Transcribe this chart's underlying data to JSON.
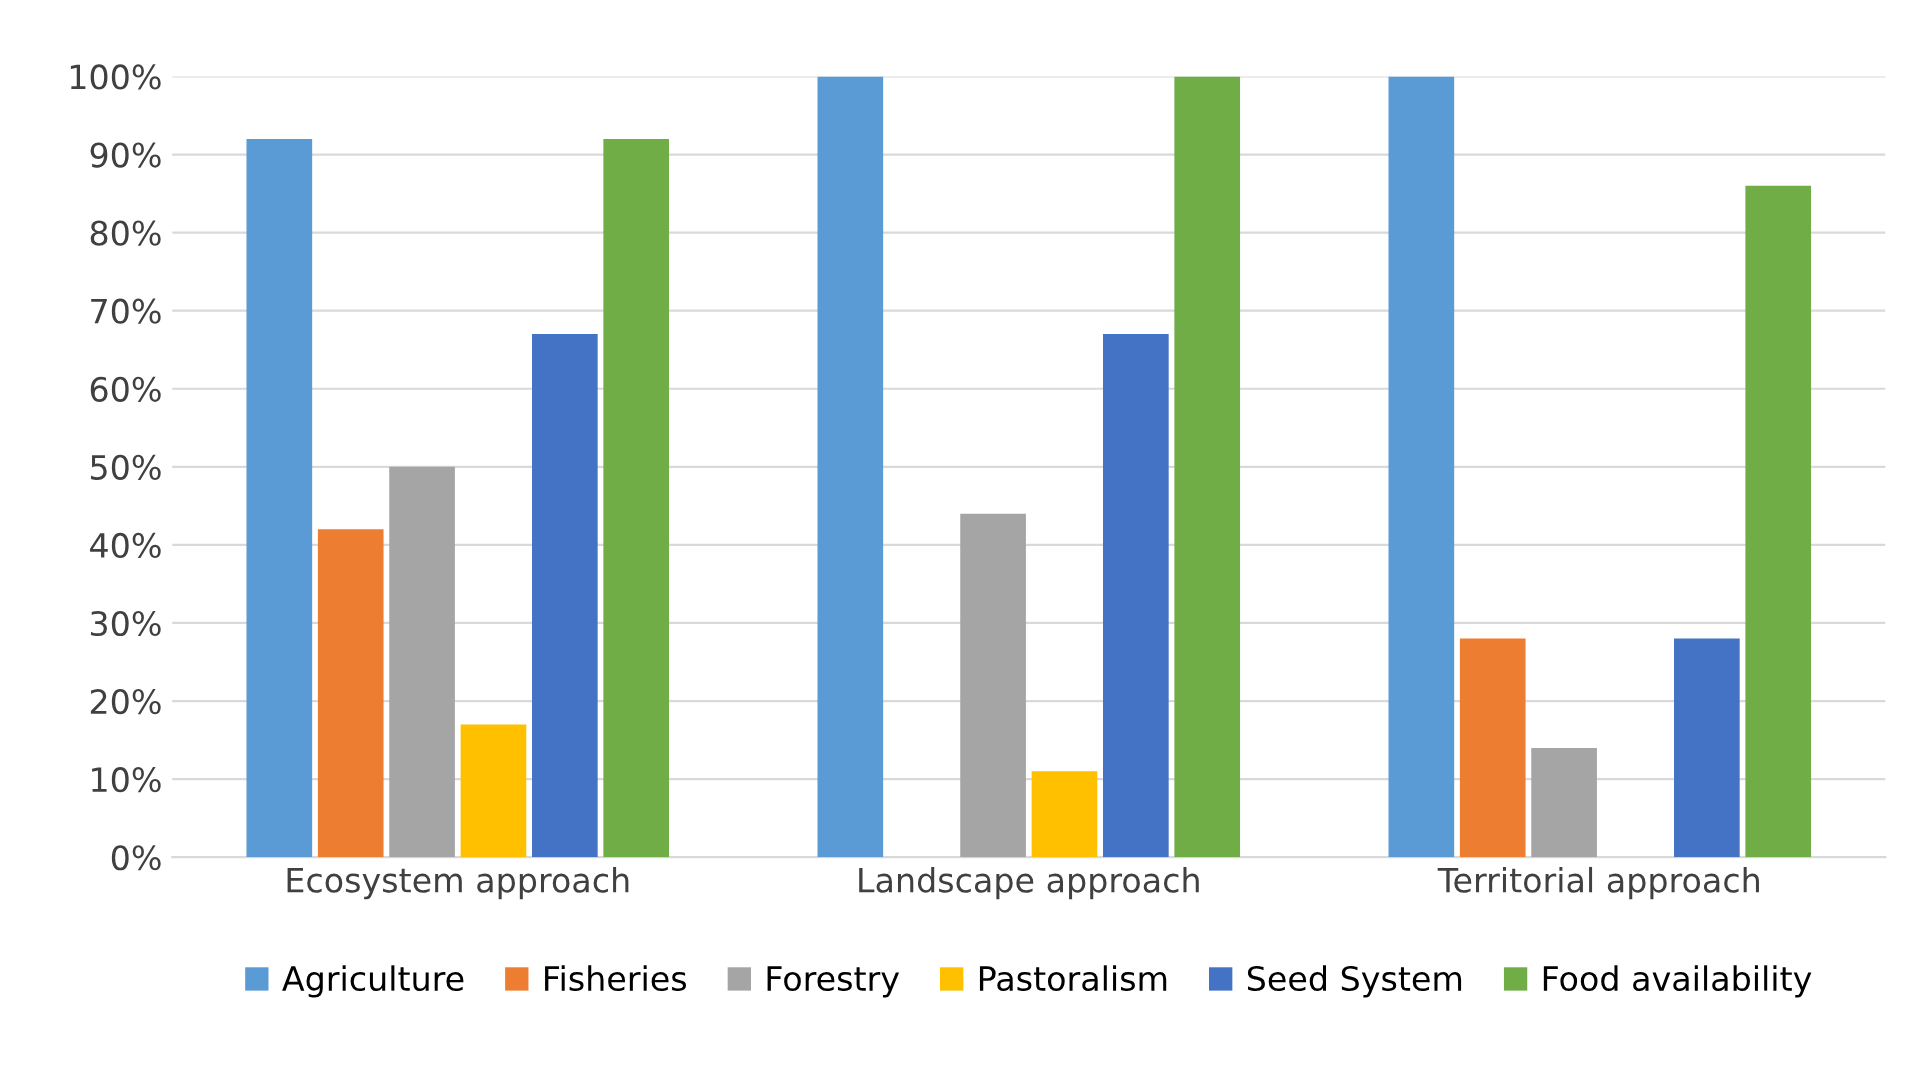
{
  "chart_data": {
    "type": "bar",
    "categories": [
      "Ecosystem approach",
      "Landscape approach",
      "Territorial approach"
    ],
    "series": [
      {
        "name": "Agriculture",
        "color": "#5b9bd5",
        "values": [
          92,
          100,
          100
        ]
      },
      {
        "name": "Fisheries",
        "color": "#ed7d31",
        "values": [
          42,
          0,
          28
        ]
      },
      {
        "name": "Forestry",
        "color": "#a5a5a5",
        "values": [
          50,
          44,
          14
        ]
      },
      {
        "name": "Pastoralism",
        "color": "#ffc000",
        "values": [
          17,
          11,
          0
        ]
      },
      {
        "name": "Seed System",
        "color": "#4472c4",
        "values": [
          67,
          67,
          28
        ]
      },
      {
        "name": "Food availability",
        "color": "#70ad47",
        "values": [
          92,
          100,
          86
        ]
      }
    ],
    "ylim": [
      0,
      100
    ],
    "yticks": [
      {
        "value": 0,
        "label": "0%"
      },
      {
        "value": 10,
        "label": "10%"
      },
      {
        "value": 20,
        "label": "20%"
      },
      {
        "value": 30,
        "label": "30%"
      },
      {
        "value": 40,
        "label": "40%"
      },
      {
        "value": 50,
        "label": "50%"
      },
      {
        "value": 60,
        "label": "60%"
      },
      {
        "value": 70,
        "label": "70%"
      },
      {
        "value": 80,
        "label": "80%"
      },
      {
        "value": 90,
        "label": "90%"
      },
      {
        "value": 100,
        "label": "100%"
      }
    ],
    "grid": "y",
    "legend": "bottom"
  }
}
